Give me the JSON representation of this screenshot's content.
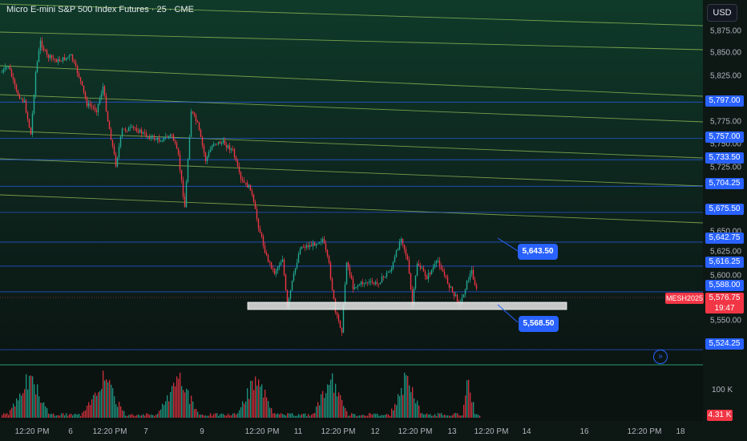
{
  "header": {
    "title": "Micro E-mini S&P 500 Index Futures · 25 · CME",
    "currency_button": "USD"
  },
  "price_axis": {
    "labels": [
      "5,875.00",
      "5,850.00",
      "5,825.00",
      "5,775.00",
      "5,750.00",
      "5,725.00",
      "5,650.00",
      "5,625.00",
      "5,600.00",
      "5,550.00"
    ],
    "label_values": [
      5875,
      5850,
      5825,
      5775,
      5750,
      5725,
      5650,
      5625,
      5600,
      5550
    ],
    "blue_levels": [
      "5,797.00",
      "5,757.00",
      "5,733.50",
      "5,704.25",
      "5,675.50",
      "5,642.75",
      "5,616.25",
      "5,588.00",
      "5,524.25"
    ],
    "blue_level_values": [
      5797,
      5757,
      5733.5,
      5704.25,
      5675.5,
      5642.75,
      5616.25,
      5588,
      5524.25
    ]
  },
  "last_price": {
    "symbol": "MESH2025",
    "price": "5,576.75",
    "countdown": "19:47"
  },
  "callouts": {
    "upper": "5,643.50",
    "lower": "5,568.50"
  },
  "time_axis": {
    "labels": [
      "12:20 PM",
      "6",
      "12:20 PM",
      "7",
      "9",
      "12:20 PM",
      "11",
      "12:20 PM",
      "12",
      "12:20 PM",
      "13",
      "12:20 PM",
      "14",
      "16",
      "12:20 PM",
      "18"
    ]
  },
  "volume": {
    "axis_label": "100 K",
    "current": "4.31 K"
  },
  "colors": {
    "background": "#0c1512",
    "up": "#22ab94",
    "down": "#f23645",
    "level_line": "#2962ff",
    "trend_line": "#9bc45a"
  },
  "icons": {
    "go_to_realtime": "double-chevron-right-icon"
  }
}
